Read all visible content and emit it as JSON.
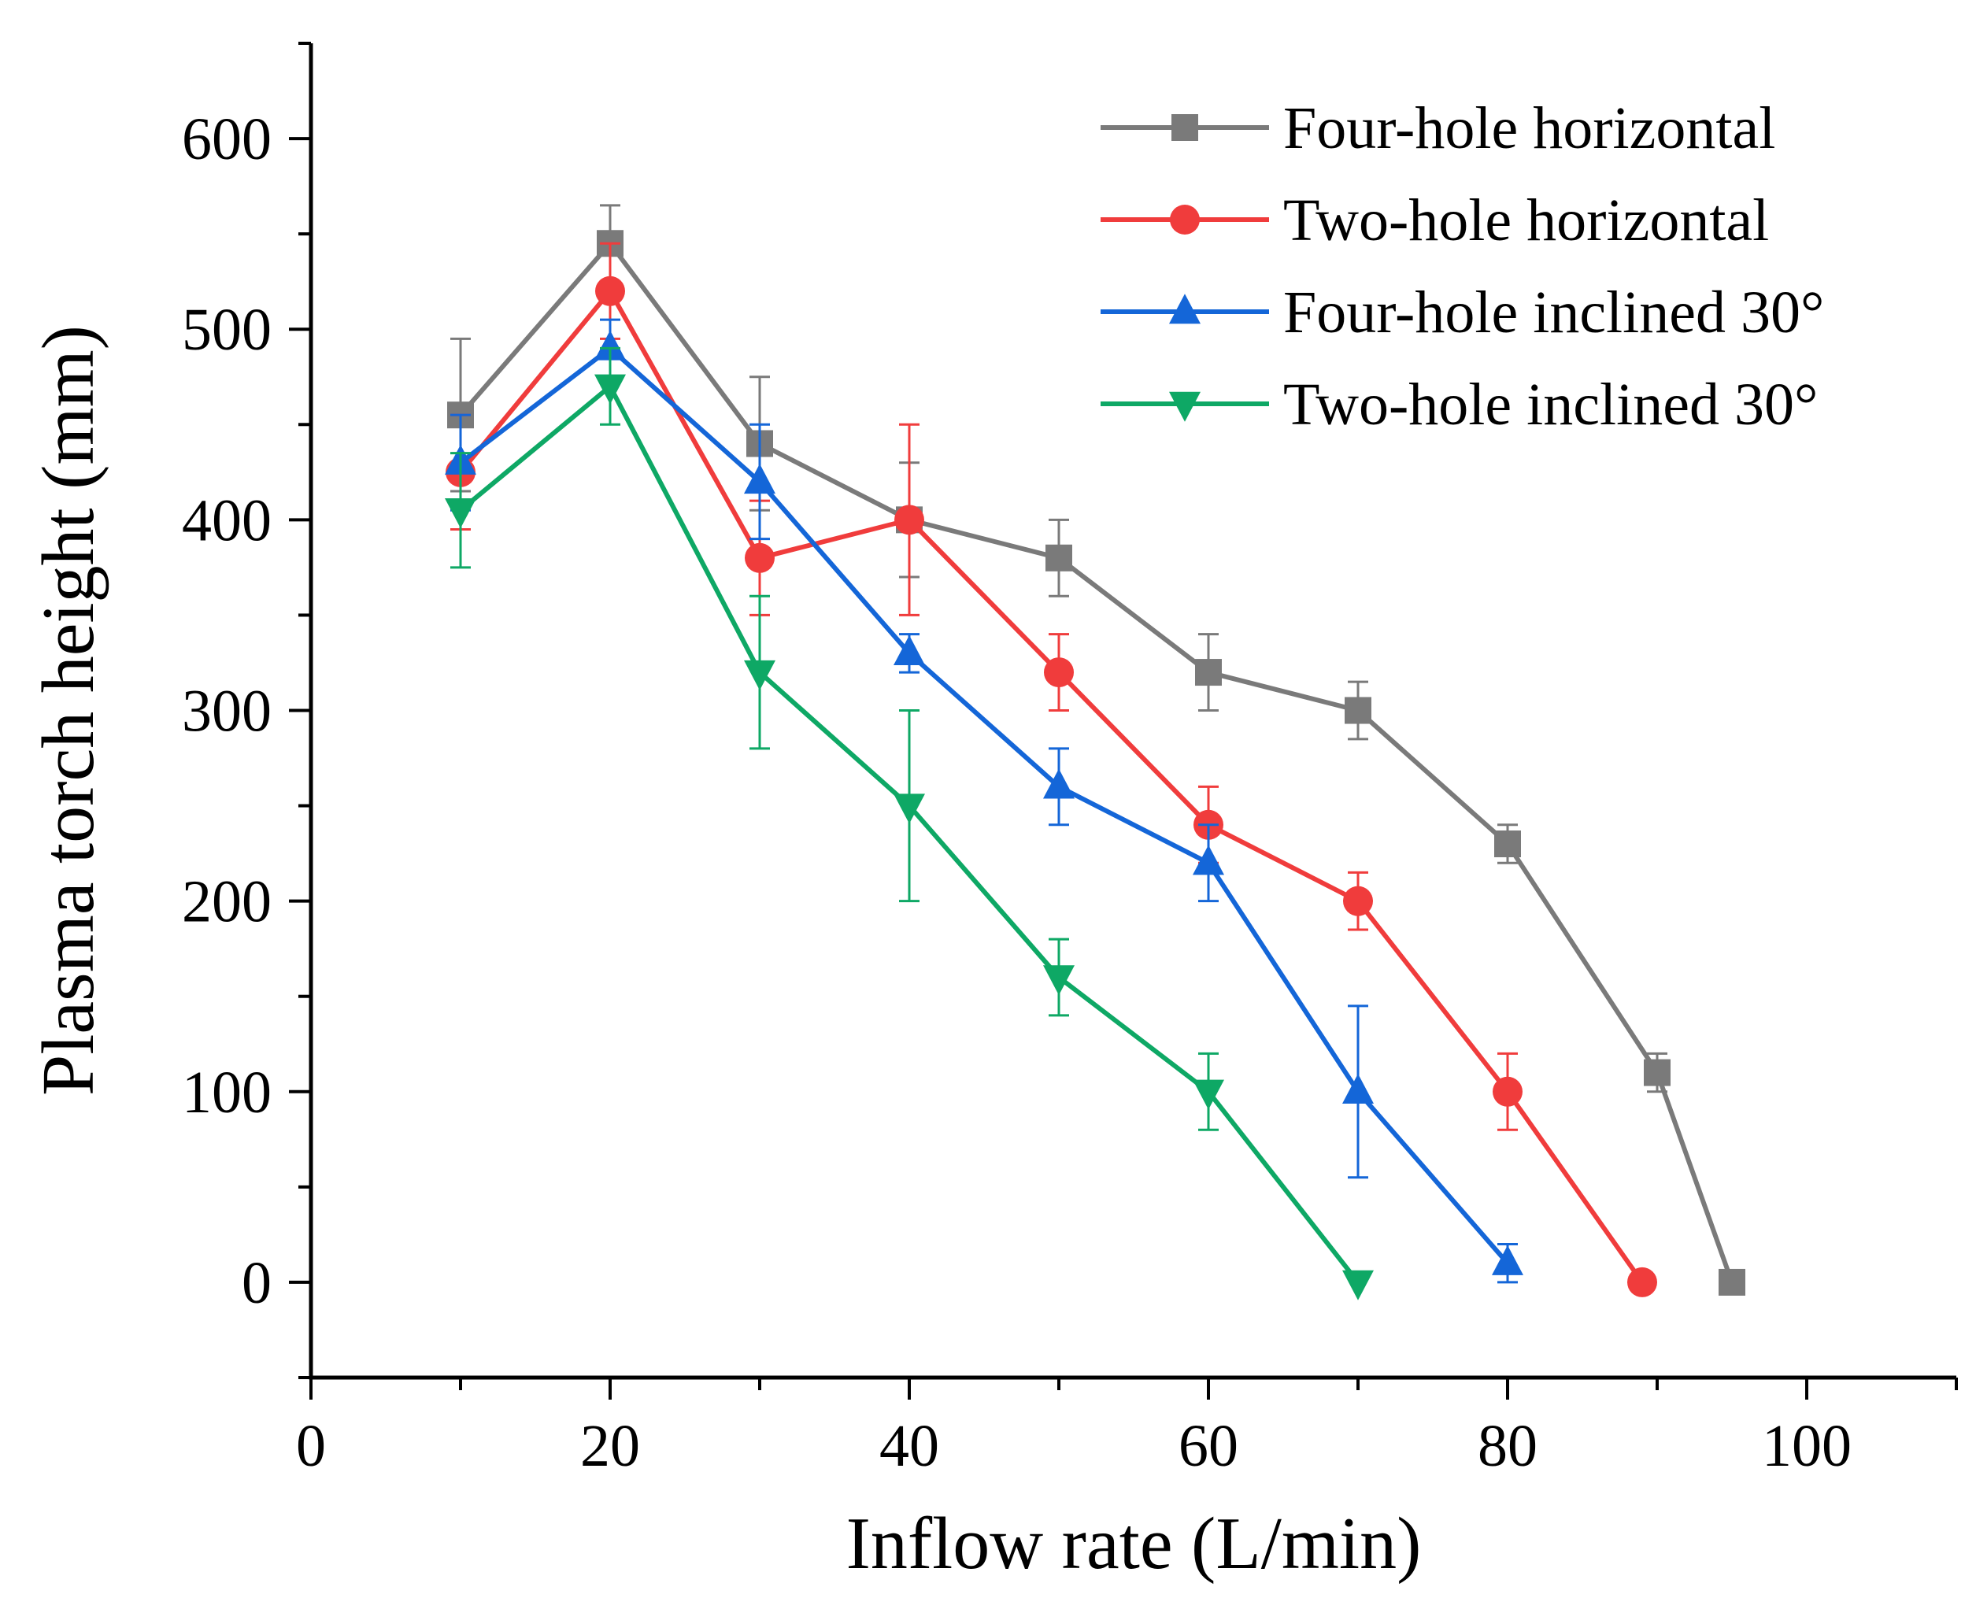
{
  "chart_data": {
    "type": "line",
    "title": "",
    "xlabel": "Inflow rate (L/min)",
    "ylabel": "Plasma torch height (mm)",
    "xlim": [
      0,
      110
    ],
    "ylim": [
      -50,
      650
    ],
    "xticks": [
      0,
      20,
      40,
      60,
      80,
      100
    ],
    "yticks": [
      0,
      100,
      200,
      300,
      400,
      500,
      600
    ],
    "grid": false,
    "legend_position": "top-right",
    "series": [
      {
        "name": "Four-hole horizontal",
        "color": "#7a7a7a",
        "marker": "square",
        "x": [
          10,
          20,
          30,
          40,
          50,
          60,
          70,
          80,
          90,
          95
        ],
        "y": [
          455,
          545,
          440,
          400,
          380,
          320,
          300,
          230,
          110,
          0
        ],
        "err": [
          40,
          20,
          35,
          30,
          20,
          20,
          15,
          10,
          10,
          0
        ]
      },
      {
        "name": "Two-hole horizontal",
        "color": "#f03c3c",
        "marker": "circle",
        "x": [
          10,
          20,
          30,
          40,
          50,
          60,
          70,
          80,
          89
        ],
        "y": [
          425,
          520,
          380,
          400,
          320,
          240,
          200,
          100,
          0
        ],
        "err": [
          30,
          25,
          30,
          50,
          20,
          20,
          15,
          20,
          0
        ]
      },
      {
        "name": "Four-hole inclined 30°",
        "color": "#1466d8",
        "marker": "triangle-up",
        "x": [
          10,
          20,
          30,
          40,
          50,
          60,
          70,
          80
        ],
        "y": [
          430,
          490,
          420,
          330,
          260,
          220,
          100,
          10
        ],
        "err": [
          25,
          15,
          30,
          10,
          20,
          20,
          45,
          10
        ]
      },
      {
        "name": "Two-hole inclined 30°",
        "color": "#0ea865",
        "marker": "triangle-down",
        "x": [
          10,
          20,
          30,
          40,
          50,
          60,
          70
        ],
        "y": [
          405,
          470,
          320,
          250,
          160,
          100,
          0
        ],
        "err": [
          30,
          20,
          40,
          50,
          20,
          20,
          0
        ]
      }
    ]
  }
}
